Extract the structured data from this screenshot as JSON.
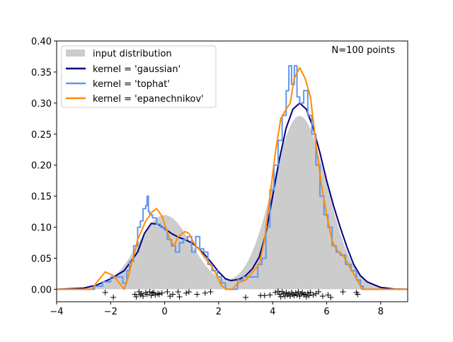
{
  "chart_data": {
    "type": "line",
    "xlim": [
      -4,
      9
    ],
    "ylim": [
      -0.02,
      0.4
    ],
    "xticks": [
      -4,
      -2,
      0,
      2,
      4,
      6,
      8
    ],
    "yticks": [
      0.0,
      0.05,
      0.1,
      0.15,
      0.2,
      0.25,
      0.3,
      0.35,
      0.4
    ],
    "ytick_labels": [
      "0.00",
      "0.05",
      "0.10",
      "0.15",
      "0.20",
      "0.25",
      "0.30",
      "0.35",
      "0.40"
    ],
    "grid": false,
    "legend_position": "top-left",
    "annotation": "N=100 points",
    "input_distribution": {
      "name": "input distribution",
      "color": "#cccccc",
      "components": [
        {
          "weight": 0.3,
          "mean": 0,
          "sd": 1
        },
        {
          "weight": 0.7,
          "mean": 5,
          "sd": 1
        }
      ]
    },
    "series": [
      {
        "name": "kernel = 'gaussian'",
        "color": "#000080",
        "x": [
          -4,
          -3,
          -2.5,
          -2,
          -1.5,
          -1,
          -0.75,
          -0.5,
          -0.25,
          0,
          0.25,
          0.5,
          0.75,
          1,
          1.25,
          1.5,
          1.75,
          2,
          2.25,
          2.45,
          2.75,
          3,
          3.25,
          3.5,
          3.75,
          4,
          4.25,
          4.5,
          4.75,
          5,
          5.25,
          5.5,
          5.75,
          6,
          6.25,
          6.5,
          6.75,
          7,
          7.25,
          7.5,
          8,
          8.5,
          9
        ],
        "y": [
          0,
          0.002,
          0.007,
          0.017,
          0.03,
          0.06,
          0.09,
          0.106,
          0.105,
          0.098,
          0.09,
          0.084,
          0.08,
          0.075,
          0.066,
          0.055,
          0.042,
          0.028,
          0.017,
          0.014,
          0.016,
          0.022,
          0.033,
          0.052,
          0.09,
          0.15,
          0.21,
          0.26,
          0.29,
          0.3,
          0.29,
          0.26,
          0.22,
          0.175,
          0.135,
          0.1,
          0.068,
          0.04,
          0.022,
          0.012,
          0.003,
          0.0005,
          0
        ]
      },
      {
        "name": "kernel = 'tophat'",
        "color": "#6495ed",
        "x": [
          -4,
          -2.7,
          -2.6,
          -2.3,
          -2.0,
          -1.8,
          -1.55,
          -1.4,
          -1.3,
          -1.15,
          -1.0,
          -0.9,
          -0.8,
          -0.7,
          -0.65,
          -0.6,
          -0.55,
          -0.45,
          -0.3,
          -0.15,
          0,
          0.1,
          0.25,
          0.4,
          0.55,
          0.7,
          0.85,
          1.0,
          1.15,
          1.3,
          1.45,
          1.6,
          1.75,
          1.95,
          2.1,
          2.25,
          2.55,
          2.7,
          2.9,
          3.2,
          3.45,
          3.6,
          3.75,
          3.9,
          4.05,
          4.2,
          4.35,
          4.5,
          4.6,
          4.7,
          4.8,
          4.9,
          5.0,
          5.15,
          5.3,
          5.45,
          5.6,
          5.75,
          5.9,
          6.05,
          6.2,
          6.35,
          6.5,
          6.7,
          6.9,
          7.1,
          7.25,
          7.35,
          9
        ],
        "y": [
          0,
          0,
          0.005,
          0.012,
          0.02,
          0.02,
          0.01,
          0.03,
          0.045,
          0.07,
          0.1,
          0.11,
          0.13,
          0.135,
          0.15,
          0.125,
          0.12,
          0.115,
          0.105,
          0.1,
          0.095,
          0.08,
          0.07,
          0.06,
          0.075,
          0.08,
          0.085,
          0.06,
          0.085,
          0.065,
          0.06,
          0.04,
          0.03,
          0.02,
          0.01,
          0,
          0,
          0.015,
          0.02,
          0.02,
          0.04,
          0.05,
          0.1,
          0.16,
          0.2,
          0.24,
          0.28,
          0.32,
          0.36,
          0.33,
          0.36,
          0.31,
          0.3,
          0.32,
          0.28,
          0.25,
          0.2,
          0.15,
          0.12,
          0.1,
          0.07,
          0.06,
          0.055,
          0.04,
          0.03,
          0.015,
          0.005,
          0,
          0
        ]
      },
      {
        "name": "kernel = 'epanechnikov'",
        "color": "#ff8c00",
        "x": [
          -4,
          -2.7,
          -2.5,
          -2.2,
          -1.9,
          -1.6,
          -1.5,
          -1.35,
          -1.2,
          -1,
          -0.7,
          -0.45,
          -0.3,
          -0.1,
          0,
          0.2,
          0.35,
          0.5,
          0.75,
          0.9,
          1.1,
          1.3,
          1.5,
          1.7,
          1.9,
          2.1,
          2.3,
          2.5,
          2.7,
          3.0,
          3.3,
          3.5,
          3.7,
          3.9,
          4.1,
          4.3,
          4.5,
          4.65,
          4.8,
          5.0,
          5.2,
          5.4,
          5.6,
          5.8,
          6.0,
          6.2,
          6.4,
          6.6,
          6.8,
          7.0,
          7.2,
          7.3,
          9
        ],
        "y": [
          0,
          0,
          0.012,
          0.028,
          0.022,
          0.006,
          0.0,
          0.02,
          0.045,
          0.08,
          0.11,
          0.125,
          0.13,
          0.118,
          0.105,
          0.08,
          0.07,
          0.085,
          0.093,
          0.09,
          0.073,
          0.063,
          0.05,
          0.04,
          0.025,
          0.006,
          0,
          0,
          0.01,
          0.015,
          0.03,
          0.04,
          0.08,
          0.15,
          0.22,
          0.275,
          0.29,
          0.3,
          0.34,
          0.357,
          0.34,
          0.31,
          0.235,
          0.17,
          0.12,
          0.078,
          0.062,
          0.055,
          0.04,
          0.025,
          0.01,
          0,
          0
        ]
      }
    ],
    "samples": {
      "marker": "+",
      "x": [
        -2.2,
        -1.9,
        -1.1,
        -1.05,
        -0.95,
        -0.9,
        -0.85,
        -0.8,
        -0.7,
        -0.65,
        -0.55,
        -0.5,
        -0.45,
        -0.4,
        -0.35,
        -0.25,
        -0.2,
        -0.1,
        0.1,
        0.2,
        0.3,
        0.5,
        0.55,
        0.8,
        0.9,
        1.2,
        1.5,
        1.7,
        3.0,
        3.55,
        3.7,
        3.9,
        4.1,
        4.2,
        4.25,
        4.3,
        4.35,
        4.4,
        4.45,
        4.5,
        4.55,
        4.6,
        4.65,
        4.7,
        4.75,
        4.8,
        4.85,
        4.9,
        4.95,
        5.0,
        5.05,
        5.1,
        5.15,
        5.2,
        5.25,
        5.3,
        5.35,
        5.4,
        5.5,
        5.6,
        5.7,
        5.85,
        6.05,
        6.15,
        6.6,
        7.1,
        7.15
      ],
      "y": [
        -0.005,
        -0.013,
        -0.008,
        -0.012,
        -0.004,
        -0.009,
        -0.007,
        -0.011,
        -0.005,
        -0.008,
        -0.004,
        -0.01,
        -0.006,
        -0.005,
        -0.009,
        -0.007,
        -0.008,
        -0.006,
        -0.004,
        -0.011,
        -0.008,
        -0.004,
        -0.012,
        -0.006,
        -0.004,
        -0.008,
        -0.006,
        -0.004,
        -0.013,
        -0.01,
        -0.01,
        -0.009,
        -0.005,
        -0.003,
        -0.008,
        -0.012,
        -0.004,
        -0.007,
        -0.011,
        -0.005,
        -0.009,
        -0.007,
        -0.011,
        -0.005,
        -0.008,
        -0.01,
        -0.006,
        -0.009,
        -0.004,
        -0.011,
        -0.007,
        -0.005,
        -0.009,
        -0.008,
        -0.012,
        -0.006,
        -0.01,
        -0.005,
        -0.009,
        -0.007,
        -0.004,
        -0.011,
        -0.009,
        -0.013,
        -0.004,
        -0.005,
        -0.008
      ]
    }
  }
}
